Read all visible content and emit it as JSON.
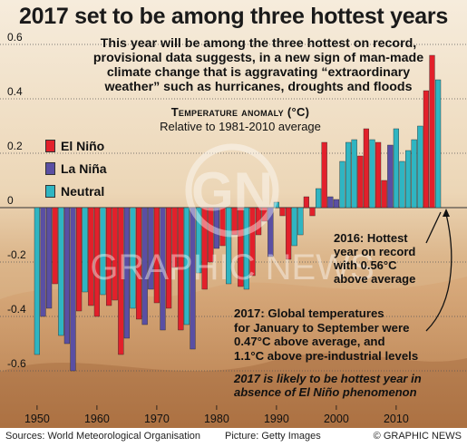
{
  "title": "2017 set to be among three hottest years",
  "subtitle_lines": [
    "This year will be among the three hottest on record,",
    "provisional data suggests, in a new sign of man-made",
    "climate change that is aggravating “extraordinary",
    "weather” such as hurricanes, droughts and floods"
  ],
  "axis_title": "Temperature anomaly (°C)",
  "axis_subtitle": "Relative to 1981-2010 average",
  "annotation_2016": [
    "2016: Hottest",
    "year on record",
    "with 0.56°C",
    "above average"
  ],
  "annotation_2017": [
    "2017: Global temperatures",
    "for January to September were",
    "0.47°C above average, and",
    "1.1°C above pre-industrial levels"
  ],
  "annotation_2017_italic": [
    "2017 is likely to be hottest year in",
    "absence of El Niño phenomenon"
  ],
  "footer": {
    "sources": "Sources: World Meteorological Organisation",
    "picture": "Picture: Getty Images",
    "credit": "© GRAPHIC NEWS"
  },
  "watermark_text": "GRAPHIC NEWS",
  "watermark_logo": "GN",
  "colors": {
    "el_nino": "#e2202b",
    "la_nina": "#5a4fa3",
    "neutral": "#2fb5c2",
    "background_sky": "#e9d3b3",
    "background_sand": "#c9915c"
  },
  "chart_data": {
    "type": "bar",
    "title": "",
    "ylabel": "Temperature anomaly (°C)",
    "ylim": [
      -0.65,
      0.65
    ],
    "y_ticks": [
      -0.6,
      -0.4,
      -0.2,
      0,
      0.2,
      0.4,
      0.6
    ],
    "y_tick_labels": [
      "-0.6",
      "-0.4",
      "-0.2",
      "0",
      "0.2",
      "0.4",
      "0.6"
    ],
    "x_ticks": [
      1950,
      1960,
      1970,
      1980,
      1990,
      2000,
      2010
    ],
    "x_tick_labels": [
      "1950",
      "1960",
      "1970",
      "1980",
      "1990",
      "2000",
      "2010"
    ],
    "legend": [
      {
        "name": "El Niño",
        "key": "E"
      },
      {
        "name": "La Niña",
        "key": "L"
      },
      {
        "name": "Neutral",
        "key": "N"
      }
    ],
    "legend_position": "left",
    "years": [
      1950,
      1951,
      1952,
      1953,
      1954,
      1955,
      1956,
      1957,
      1958,
      1959,
      1960,
      1961,
      1962,
      1963,
      1964,
      1965,
      1966,
      1967,
      1968,
      1969,
      1970,
      1971,
      1972,
      1973,
      1974,
      1975,
      1976,
      1977,
      1978,
      1979,
      1980,
      1981,
      1982,
      1983,
      1984,
      1985,
      1986,
      1987,
      1988,
      1989,
      1990,
      1991,
      1992,
      1993,
      1994,
      1995,
      1996,
      1997,
      1998,
      1999,
      2000,
      2001,
      2002,
      2003,
      2004,
      2005,
      2006,
      2007,
      2008,
      2009,
      2010,
      2011,
      2012,
      2013,
      2014,
      2015,
      2016,
      2017
    ],
    "values": [
      -0.54,
      -0.4,
      -0.37,
      -0.28,
      -0.47,
      -0.5,
      -0.6,
      -0.38,
      -0.31,
      -0.36,
      -0.4,
      -0.32,
      -0.36,
      -0.34,
      -0.54,
      -0.48,
      -0.37,
      -0.41,
      -0.43,
      -0.3,
      -0.35,
      -0.45,
      -0.37,
      -0.22,
      -0.45,
      -0.43,
      -0.52,
      -0.24,
      -0.3,
      -0.2,
      -0.15,
      -0.14,
      -0.28,
      -0.1,
      -0.29,
      -0.3,
      -0.25,
      -0.1,
      -0.05,
      -0.18,
      0.02,
      -0.03,
      -0.19,
      -0.14,
      -0.1,
      0.04,
      -0.03,
      0.07,
      0.24,
      0.04,
      0.03,
      0.17,
      0.24,
      0.25,
      0.19,
      0.29,
      0.25,
      0.24,
      0.1,
      0.23,
      0.29,
      0.17,
      0.21,
      0.25,
      0.3,
      0.43,
      0.56,
      0.47
    ],
    "phases": "NLLENLLENEENEEELNELLELEEENLNEELENEENEEELNEENNEENELLNNNEENEELNNNNNEEN",
    "annotations": [
      "2016: Hottest year on record with 0.56°C above average",
      "2017: Global temperatures for January to September were 0.47°C above average, and 1.1°C above pre-industrial levels"
    ]
  }
}
